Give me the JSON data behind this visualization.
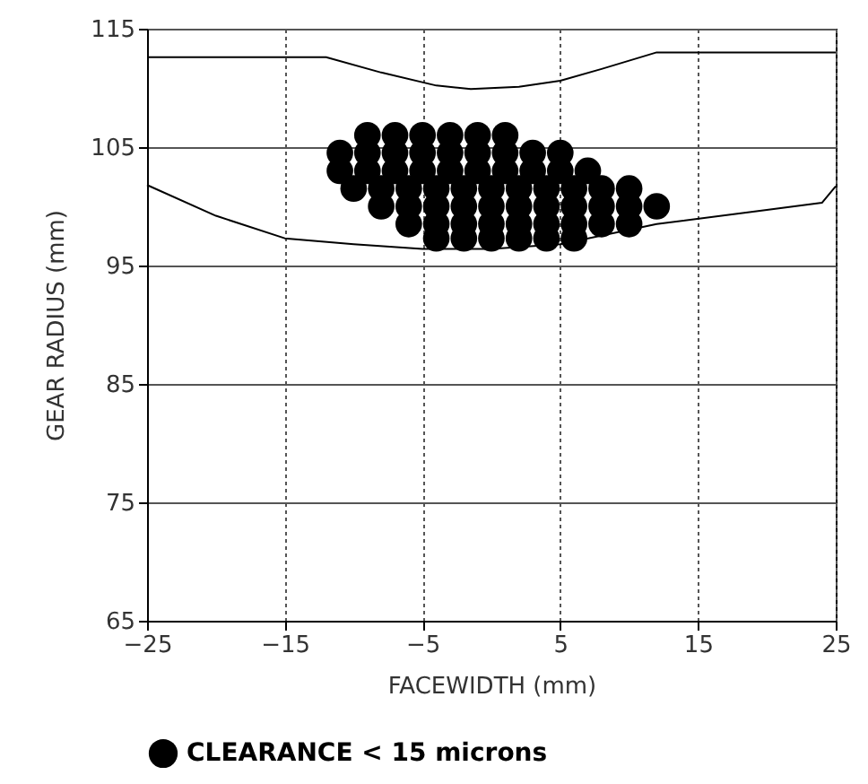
{
  "chart_data": {
    "type": "line",
    "xlabel": "FACEWIDTH (mm)",
    "ylabel": "GEAR RADIUS (mm)",
    "xlim": [
      -25,
      25
    ],
    "xticks": [
      -25,
      -15,
      -5,
      5,
      15,
      25
    ],
    "ylim": [
      65,
      115
    ],
    "yticks": [
      65,
      75,
      85,
      95,
      105,
      115
    ],
    "grid": true,
    "legend": "bottom",
    "series": [
      {
        "type": "line",
        "color": "#000000",
        "x": [
          -25,
          -12,
          -8,
          -4,
          -1.5,
          2,
          5,
          8,
          12,
          25
        ],
        "values": [
          112.6,
          112.6,
          111.3,
          110.2,
          109.9,
          110.1,
          110.6,
          111.6,
          113,
          113
        ]
      },
      {
        "type": "line",
        "color": "#000000",
        "x": [
          -25,
          -20,
          -15,
          -10,
          -5,
          0,
          5,
          12,
          20,
          24,
          25
        ],
        "values": [
          101.8,
          99.2,
          97.3,
          96.8,
          96.4,
          96.4,
          96.8,
          98.5,
          99.7,
          100.3,
          101.7
        ]
      },
      {
        "type": "scatter",
        "name": "CLEARANCE < 15 microns",
        "color": "#000000",
        "marker": "circle",
        "x": [
          -9,
          -7,
          -5,
          -3,
          -1,
          1,
          -11,
          -9,
          -7,
          -5,
          -3,
          -1,
          1,
          3,
          5,
          -11,
          -9,
          -7,
          -5,
          -3,
          -1,
          1,
          3,
          5,
          7,
          -10,
          -8,
          -6,
          -4,
          -2,
          0,
          2,
          4,
          6,
          8,
          10,
          -8,
          -6,
          -4,
          -2,
          0,
          2,
          4,
          6,
          8,
          10,
          12,
          -6,
          -4,
          -2,
          0,
          2,
          4,
          6,
          8,
          10,
          -4,
          -2,
          0,
          2,
          4,
          6
        ],
        "values": [
          106,
          106,
          106,
          106,
          106,
          106,
          104.5,
          104.5,
          104.5,
          104.5,
          104.5,
          104.5,
          104.5,
          104.5,
          104.5,
          103,
          103,
          103,
          103,
          103,
          103,
          103,
          103,
          103,
          103,
          101.5,
          101.5,
          101.5,
          101.5,
          101.5,
          101.5,
          101.5,
          101.5,
          101.5,
          101.5,
          101.5,
          100,
          100,
          100,
          100,
          100,
          100,
          100,
          100,
          100,
          100,
          100,
          98.5,
          98.5,
          98.5,
          98.5,
          98.5,
          98.5,
          98.5,
          98.5,
          98.5,
          97.3,
          97.3,
          97.3,
          97.3,
          97.3,
          97.3
        ]
      }
    ]
  }
}
